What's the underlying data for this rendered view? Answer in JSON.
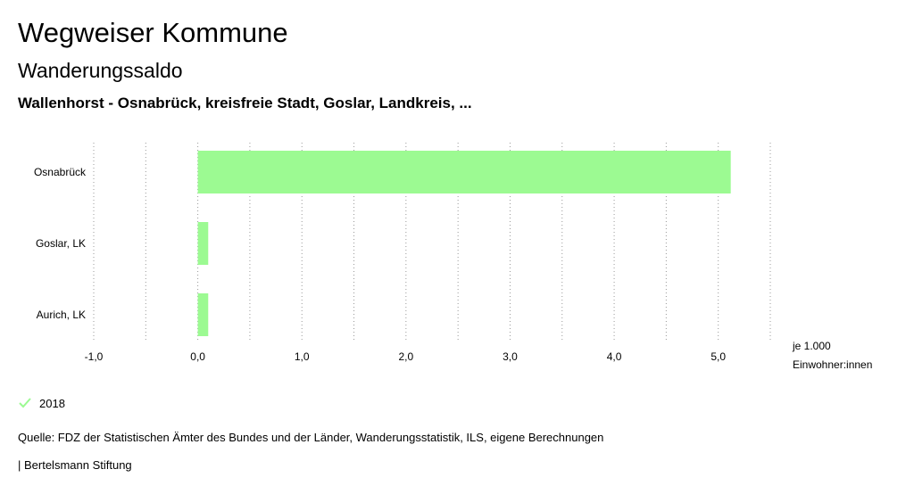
{
  "header": {
    "title": "Wegweiser Kommune",
    "subtitle": "Wanderungssaldo",
    "region": "Wallenhorst - Osnabrück, kreisfreie Stadt, Goslar, Landkreis, ..."
  },
  "legend": {
    "label": "2018",
    "icon": "check-icon"
  },
  "footer": {
    "source": "Quelle: FDZ der Statistischen Ämter des Bundes und der Länder, Wanderungsstatistik, ILS, eigene Berechnungen",
    "brand": "| Bertelsmann Stiftung"
  },
  "chart_data": {
    "type": "bar",
    "orientation": "horizontal",
    "categories": [
      "Osnabrück",
      "Goslar, LK",
      "Aurich, LK"
    ],
    "series": [
      {
        "name": "2018",
        "values": [
          5.12,
          0.1,
          0.1
        ],
        "color": "#9cfa92"
      }
    ],
    "xlim": [
      -1.0,
      5.5
    ],
    "xticks": [
      -1.0,
      0.0,
      1.0,
      2.0,
      3.0,
      4.0,
      5.0
    ],
    "xtick_labels": [
      "-1,0",
      "0,0",
      "1,0",
      "2,0",
      "3,0",
      "4,0",
      "5,0"
    ],
    "unit_label_line1": "je 1.000",
    "unit_label_line2": "Einwohner:innen",
    "grid": "vertical-dotted",
    "legend_position": "bottom-left"
  }
}
